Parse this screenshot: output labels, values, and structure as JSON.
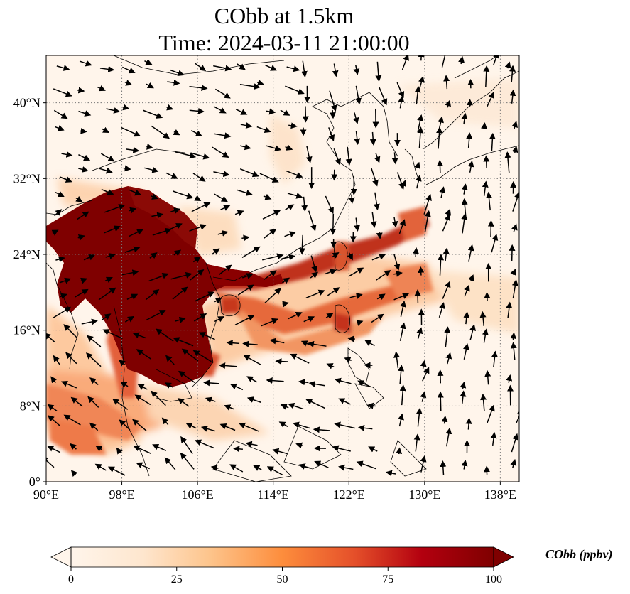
{
  "title": {
    "line1": "CObb at 1.5km",
    "line2": "Time: 2024-03-11 21:00:00"
  },
  "map": {
    "lon_range": [
      90,
      140
    ],
    "lat_range": [
      0,
      45
    ],
    "lon_ticks": [
      {
        "value": 90,
        "label": "90°E"
      },
      {
        "value": 98,
        "label": "98°E"
      },
      {
        "value": 106,
        "label": "106°E"
      },
      {
        "value": 114,
        "label": "114°E"
      },
      {
        "value": 122,
        "label": "122°E"
      },
      {
        "value": 130,
        "label": "130°E"
      },
      {
        "value": 138,
        "label": "138°E"
      }
    ],
    "lat_ticks": [
      {
        "value": 0,
        "label": "0°"
      },
      {
        "value": 8,
        "label": "8°N"
      },
      {
        "value": 16,
        "label": "16°N"
      },
      {
        "value": 24,
        "label": "24°N"
      },
      {
        "value": 32,
        "label": "32°N"
      },
      {
        "value": 40,
        "label": "40°N"
      }
    ],
    "gridlines": true
  },
  "colorbar": {
    "label": "CObb (ppbv)",
    "min": 0,
    "max": 100,
    "extend": "both",
    "ticks": [
      {
        "value": 0,
        "label": "0"
      },
      {
        "value": 25,
        "label": "25"
      },
      {
        "value": 50,
        "label": "50"
      },
      {
        "value": 75,
        "label": "75"
      },
      {
        "value": 100,
        "label": "100"
      }
    ],
    "colors": [
      "#fff5eb",
      "#fdd9b4",
      "#fdab67",
      "#f5753a",
      "#d84315",
      "#a50f15",
      "#7f0000"
    ]
  }
}
